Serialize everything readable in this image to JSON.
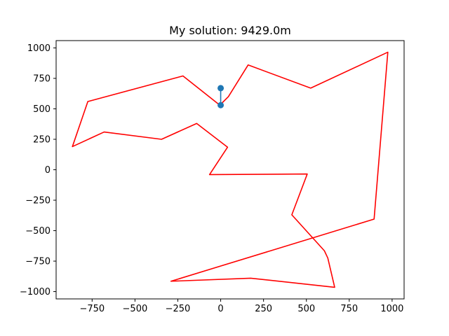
{
  "chart_data": {
    "type": "line",
    "title": "My solution: 9429.0m",
    "xlabel": "",
    "ylabel": "",
    "xlim": [
      -960,
      1070
    ],
    "ylim": [
      -1060,
      1060
    ],
    "grid": false,
    "x_ticks": [
      -750,
      -500,
      -250,
      0,
      250,
      500,
      750,
      1000
    ],
    "x_tick_labels": [
      "−750",
      "−500",
      "−250",
      "0",
      "250",
      "500",
      "750",
      "1000"
    ],
    "y_ticks": [
      -1000,
      -750,
      -500,
      -250,
      0,
      250,
      500,
      750,
      1000
    ],
    "y_tick_labels": [
      "−1000",
      "−750",
      "−500",
      "−250",
      "0",
      "250",
      "500",
      "750",
      "1000"
    ],
    "series": [
      {
        "color": "#ff0000",
        "points": [
          [
            -5,
            530
          ],
          [
            45,
            600
          ],
          [
            160,
            860
          ],
          [
            525,
            670
          ],
          [
            975,
            965
          ],
          [
            895,
            -405
          ],
          [
            -290,
            -915
          ],
          [
            175,
            -890
          ],
          [
            665,
            -965
          ],
          [
            625,
            -725
          ],
          [
            605,
            -665
          ],
          [
            415,
            -370
          ],
          [
            505,
            -35
          ],
          [
            -65,
            -40
          ],
          [
            40,
            185
          ],
          [
            -140,
            380
          ],
          [
            -345,
            250
          ],
          [
            -680,
            310
          ],
          [
            -865,
            190
          ],
          [
            -775,
            560
          ],
          [
            -220,
            770
          ],
          [
            -5,
            530
          ]
        ]
      },
      {
        "color": "#1f77b4",
        "marker": "circle",
        "points": [
          [
            0,
            670
          ],
          [
            0,
            530
          ]
        ]
      }
    ]
  }
}
